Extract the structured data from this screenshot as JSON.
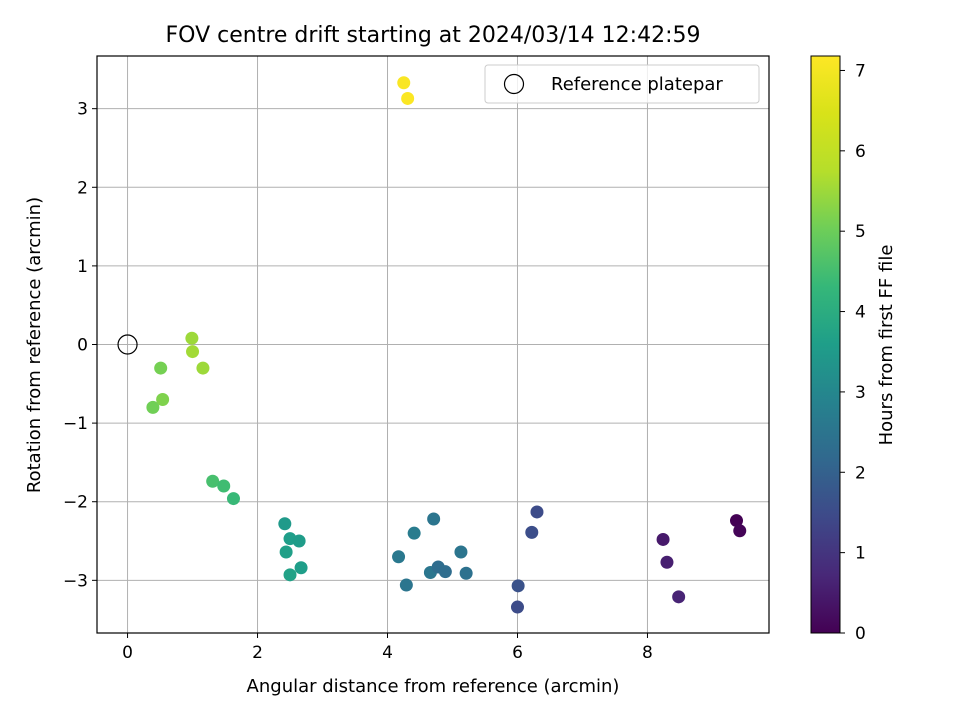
{
  "chart_data": {
    "type": "scatter",
    "title": "FOV centre drift starting at 2024/03/14 12:42:59",
    "xlabel": "Angular distance from reference (arcmin)",
    "ylabel": "Rotation from reference (arcmin)",
    "xlim": [
      -0.47,
      9.87
    ],
    "ylim": [
      -3.67,
      3.67
    ],
    "xticks": [
      0,
      2,
      4,
      6,
      8
    ],
    "yticks": [
      -3,
      -2,
      -1,
      0,
      1,
      2,
      3
    ],
    "grid": true,
    "legend": {
      "position": "upper right",
      "entries": [
        "Reference platepar"
      ]
    },
    "reference_point": {
      "x": 0,
      "y": 0,
      "label": "Reference platepar"
    },
    "colorbar": {
      "label": "Hours from first FF file",
      "range": [
        0,
        7.18
      ],
      "ticks": [
        0,
        1,
        2,
        3,
        4,
        5,
        6,
        7
      ],
      "colormap": "viridis"
    },
    "points": [
      {
        "x": 9.37,
        "y": -2.24,
        "h": 0.0
      },
      {
        "x": 9.42,
        "y": -2.37,
        "h": 0.05
      },
      {
        "x": 8.24,
        "y": -2.48,
        "h": 0.45
      },
      {
        "x": 8.3,
        "y": -2.77,
        "h": 0.55
      },
      {
        "x": 8.48,
        "y": -3.21,
        "h": 0.65
      },
      {
        "x": 6.0,
        "y": -3.34,
        "h": 1.5
      },
      {
        "x": 6.01,
        "y": -3.07,
        "h": 1.65
      },
      {
        "x": 6.22,
        "y": -2.39,
        "h": 1.55
      },
      {
        "x": 6.3,
        "y": -2.13,
        "h": 1.5
      },
      {
        "x": 4.29,
        "y": -3.06,
        "h": 2.5
      },
      {
        "x": 4.17,
        "y": -2.7,
        "h": 2.6
      },
      {
        "x": 4.41,
        "y": -2.4,
        "h": 2.7
      },
      {
        "x": 4.66,
        "y": -2.9,
        "h": 2.55
      },
      {
        "x": 4.71,
        "y": -2.22,
        "h": 2.5
      },
      {
        "x": 4.78,
        "y": -2.83,
        "h": 2.3
      },
      {
        "x": 4.89,
        "y": -2.89,
        "h": 2.3
      },
      {
        "x": 5.13,
        "y": -2.64,
        "h": 2.5
      },
      {
        "x": 5.21,
        "y": -2.91,
        "h": 2.4
      },
      {
        "x": 2.42,
        "y": -2.28,
        "h": 3.5
      },
      {
        "x": 2.44,
        "y": -2.64,
        "h": 3.65
      },
      {
        "x": 2.5,
        "y": -2.47,
        "h": 3.6
      },
      {
        "x": 2.5,
        "y": -2.93,
        "h": 3.7
      },
      {
        "x": 2.64,
        "y": -2.5,
        "h": 3.55
      },
      {
        "x": 2.67,
        "y": -2.84,
        "h": 3.6
      },
      {
        "x": 1.31,
        "y": -1.74,
        "h": 4.55
      },
      {
        "x": 1.48,
        "y": -1.8,
        "h": 4.45
      },
      {
        "x": 1.63,
        "y": -1.96,
        "h": 4.35
      },
      {
        "x": 0.39,
        "y": -0.8,
        "h": 5.05
      },
      {
        "x": 0.51,
        "y": -0.3,
        "h": 5.1
      },
      {
        "x": 0.54,
        "y": -0.7,
        "h": 5.2
      },
      {
        "x": 0.99,
        "y": 0.08,
        "h": 5.5
      },
      {
        "x": 1.0,
        "y": -0.09,
        "h": 5.55
      },
      {
        "x": 1.16,
        "y": -0.3,
        "h": 5.5
      },
      {
        "x": 4.25,
        "y": 3.33,
        "h": 7.1
      },
      {
        "x": 4.31,
        "y": 3.13,
        "h": 7.15
      }
    ]
  }
}
